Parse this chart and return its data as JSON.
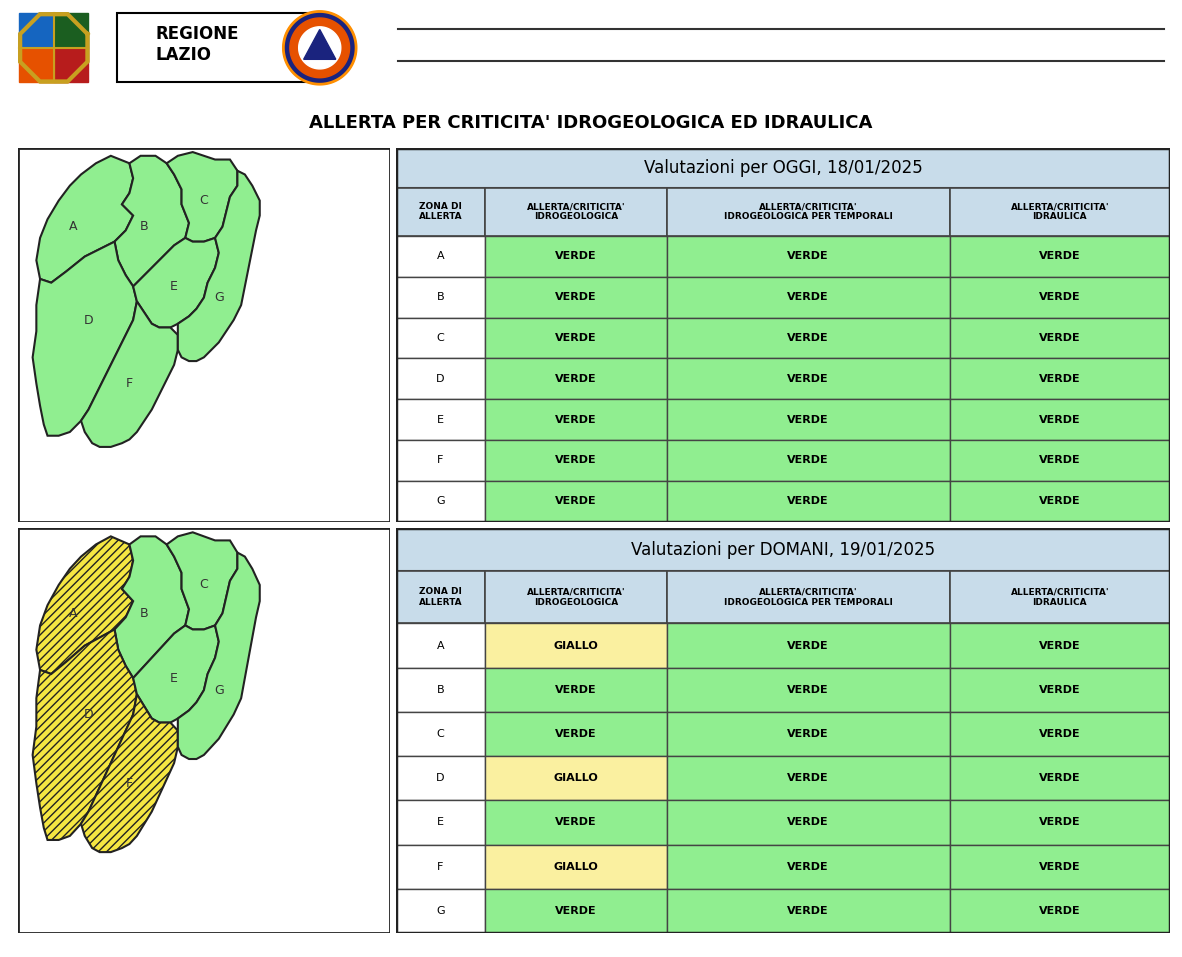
{
  "title": "ALLERTA PER CRITICITA' IDROGEOLOGICA ED IDRAULICA",
  "table1_header": "Valutazioni per OGGI, 18/01/2025",
  "table2_header": "Valutazioni per DOMANI, 19/01/2025",
  "col_headers": [
    "ZONA DI\nALLERTA",
    "ALLERTA/CRITICITA'\nIDROGEOLOGICA",
    "ALLERTA/CRITICITA'\nIDROGEOLOGICA PER TEMPORALI",
    "ALLERTA/CRITICITA'\nIDRAULICA"
  ],
  "zones": [
    "A",
    "B",
    "C",
    "D",
    "E",
    "F",
    "G"
  ],
  "table1_data": [
    [
      "VERDE",
      "VERDE",
      "VERDE"
    ],
    [
      "VERDE",
      "VERDE",
      "VERDE"
    ],
    [
      "VERDE",
      "VERDE",
      "VERDE"
    ],
    [
      "VERDE",
      "VERDE",
      "VERDE"
    ],
    [
      "VERDE",
      "VERDE",
      "VERDE"
    ],
    [
      "VERDE",
      "VERDE",
      "VERDE"
    ],
    [
      "VERDE",
      "VERDE",
      "VERDE"
    ]
  ],
  "table2_data": [
    [
      "GIALLO",
      "VERDE",
      "VERDE"
    ],
    [
      "VERDE",
      "VERDE",
      "VERDE"
    ],
    [
      "VERDE",
      "VERDE",
      "VERDE"
    ],
    [
      "GIALLO",
      "VERDE",
      "VERDE"
    ],
    [
      "VERDE",
      "VERDE",
      "VERDE"
    ],
    [
      "GIALLO",
      "VERDE",
      "VERDE"
    ],
    [
      "VERDE",
      "VERDE",
      "VERDE"
    ]
  ],
  "color_verde": "#90EE90",
  "color_giallo": "#FAF0A0",
  "color_header_bg": "#C8DCEA",
  "color_zona_bg": "#FFFFFF",
  "color_border": "#444444",
  "color_outer_border": "#222222",
  "bg_color": "#FFFFFF",
  "title_fontsize": 13,
  "header_fontsize": 12,
  "col_header_fontsize": 6.5,
  "cell_fontsize": 8,
  "zone_label_fontsize": 9,
  "map_green": "#90EE90",
  "map_yellow": "#F5E642",
  "map_border": "#222222"
}
